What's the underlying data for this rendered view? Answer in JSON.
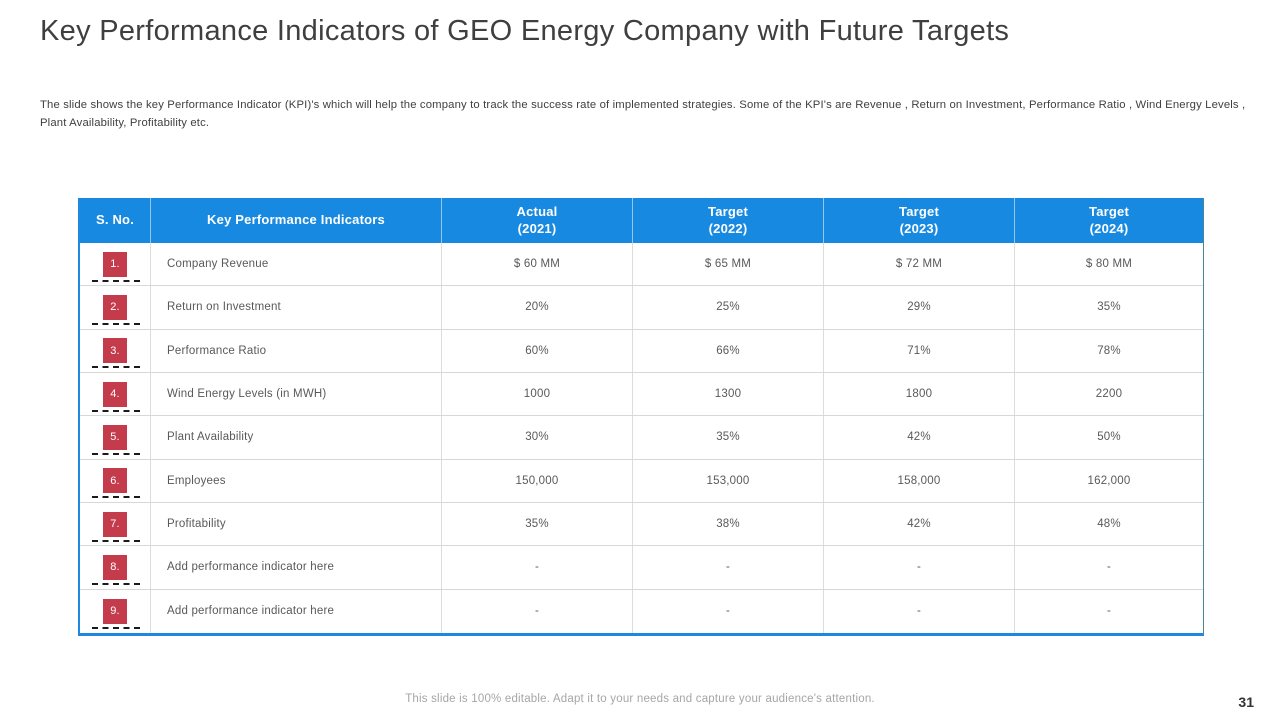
{
  "slide": {
    "title": "Key Performance Indicators of GEO Energy Company with Future Targets",
    "description": "The slide shows the key Performance Indicator (KPI)'s which will help the company to track the success rate of implemented strategies. Some of the KPI's are Revenue ,  Return on Investment, Performance Ratio , Wind Energy Levels , Plant Availability, Profitability etc.",
    "footer_note": "This slide is 100% editable. Adapt it to your needs and capture your audience's attention.",
    "page_number": "31"
  },
  "table": {
    "header": {
      "sno": "S. No.",
      "kpi": "Key Performance Indicators",
      "periods": [
        {
          "label": "Actual",
          "year": "(2021)"
        },
        {
          "label": "Target",
          "year": "(2022)"
        },
        {
          "label": "Target",
          "year": "(2023)"
        },
        {
          "label": "Target",
          "year": "(2024)"
        }
      ]
    },
    "rows": [
      {
        "no": "1.",
        "kpi": "Company Revenue",
        "values": [
          "$ 60 MM",
          "$ 65 MM",
          "$ 72 MM",
          "$ 80 MM"
        ]
      },
      {
        "no": "2.",
        "kpi": "Return on Investment",
        "values": [
          "20%",
          "25%",
          "29%",
          "35%"
        ]
      },
      {
        "no": "3.",
        "kpi": "Performance Ratio",
        "values": [
          "60%",
          "66%",
          "71%",
          "78%"
        ]
      },
      {
        "no": "4.",
        "kpi": "Wind Energy Levels (in MWH)",
        "values": [
          "1000",
          "1300",
          "1800",
          "2200"
        ]
      },
      {
        "no": "5.",
        "kpi": "Plant Availability",
        "values": [
          "30%",
          "35%",
          "42%",
          "50%"
        ]
      },
      {
        "no": "6.",
        "kpi": "Employees",
        "values": [
          "150,000",
          "153,000",
          "158,000",
          "162,000"
        ]
      },
      {
        "no": "7.",
        "kpi": "Profitability",
        "values": [
          "35%",
          "38%",
          "42%",
          "48%"
        ]
      },
      {
        "no": "8.",
        "kpi": "Add performance indicator here",
        "values": [
          "-",
          "-",
          "-",
          "-"
        ]
      },
      {
        "no": "9.",
        "kpi": "Add performance indicator here",
        "values": [
          "-",
          "-",
          "-",
          "-"
        ]
      }
    ]
  },
  "colors": {
    "header_bg": "#1789E0",
    "badge_bg": "#C43B4B",
    "table_border_blue": "#1E87E0",
    "grid_line": "#D8D8D8",
    "title_text": "#3F3F3F",
    "cell_text": "#595959",
    "footer_text": "#A6A6A6"
  }
}
